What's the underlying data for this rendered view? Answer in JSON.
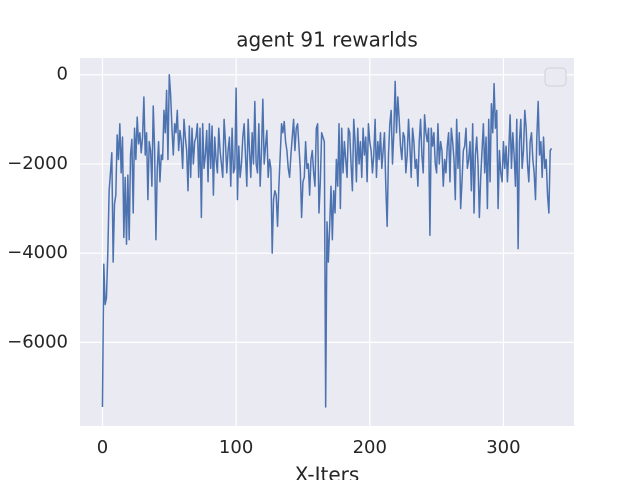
{
  "chart_data": {
    "type": "line",
    "title": "agent 91 rewarlds",
    "x_label": "X-Iters",
    "x": [
      0,
      1,
      2,
      3,
      4,
      5,
      6,
      7,
      8,
      9,
      10,
      11,
      12,
      13,
      14,
      15,
      16,
      17,
      18,
      19,
      20,
      21,
      22,
      23,
      24,
      25,
      26,
      27,
      28,
      29,
      30,
      31,
      32,
      33,
      34,
      35,
      36,
      37,
      38,
      39,
      40,
      41,
      42,
      43,
      44,
      45,
      46,
      47,
      48,
      49,
      50,
      51,
      52,
      53,
      54,
      55,
      56,
      57,
      58,
      59,
      60,
      61,
      62,
      63,
      64,
      65,
      66,
      67,
      68,
      69,
      70,
      71,
      72,
      73,
      74,
      75,
      76,
      77,
      78,
      79,
      80,
      81,
      82,
      83,
      84,
      85,
      86,
      87,
      88,
      89,
      90,
      91,
      92,
      93,
      94,
      95,
      96,
      97,
      98,
      99,
      100,
      101,
      102,
      103,
      104,
      105,
      106,
      107,
      108,
      109,
      110,
      111,
      112,
      113,
      114,
      115,
      116,
      117,
      118,
      119,
      120,
      121,
      122,
      123,
      124,
      125,
      126,
      127,
      128,
      129,
      130,
      131,
      132,
      133,
      134,
      135,
      136,
      137,
      138,
      139,
      140,
      141,
      142,
      143,
      144,
      145,
      146,
      147,
      148,
      149,
      150,
      151,
      152,
      153,
      154,
      155,
      156,
      157,
      158,
      159,
      160,
      161,
      162,
      163,
      164,
      165,
      166,
      167,
      168,
      169,
      170,
      171,
      172,
      173,
      174,
      175,
      176,
      177,
      178,
      179,
      180,
      181,
      182,
      183,
      184,
      185,
      186,
      187,
      188,
      189,
      190,
      191,
      192,
      193,
      194,
      195,
      196,
      197,
      198,
      199,
      200,
      201,
      202,
      203,
      204,
      205,
      206,
      207,
      208,
      209,
      210,
      211,
      212,
      213,
      214,
      215,
      216,
      217,
      218,
      219,
      220,
      221,
      222,
      223,
      224,
      225,
      226,
      227,
      228,
      229,
      230,
      231,
      232,
      233,
      234,
      235,
      236,
      237,
      238,
      239,
      240,
      241,
      242,
      243,
      244,
      245,
      246,
      247,
      248,
      249,
      250,
      251,
      252,
      253,
      254,
      255,
      256,
      257,
      258,
      259,
      260,
      261,
      262,
      263,
      264,
      265,
      266,
      267,
      268,
      269,
      270,
      271,
      272,
      273,
      274,
      275,
      276,
      277,
      278,
      279,
      280,
      281,
      282,
      283,
      284,
      285,
      286,
      287,
      288,
      289,
      290,
      291,
      292,
      293,
      294,
      295,
      296,
      297,
      298,
      299,
      300,
      301,
      302,
      303,
      304,
      305,
      306,
      307,
      308,
      309,
      310,
      311,
      312,
      313,
      314,
      315,
      316,
      317,
      318,
      319,
      320,
      321,
      322,
      323,
      324,
      325,
      326,
      327,
      328,
      329,
      330,
      331,
      332,
      333,
      334,
      335,
      336
    ],
    "values": [
      -7450,
      -4250,
      -5150,
      -5000,
      -4000,
      -2600,
      -2200,
      -1750,
      -4200,
      -2900,
      -2700,
      -1350,
      -1900,
      -1100,
      -2200,
      -1400,
      -3650,
      -2300,
      -3800,
      -2250,
      -3700,
      -1800,
      -1450,
      -3100,
      -1200,
      -1900,
      -950,
      -1550,
      -1300,
      -1750,
      -1400,
      -500,
      -1800,
      -1300,
      -2800,
      -1500,
      -1700,
      -2500,
      -700,
      -1650,
      -3700,
      -2100,
      -1500,
      -2400,
      -1800,
      -1900,
      -800,
      -1300,
      -350,
      -1900,
      0,
      -450,
      -1200,
      -1800,
      -1100,
      -1300,
      -800,
      -1700,
      -1250,
      -1500,
      -2100,
      -1000,
      -1400,
      -1700,
      -2600,
      -1150,
      -2300,
      -1200,
      -2000,
      -1500,
      -1400,
      -1100,
      -2300,
      -1200,
      -3200,
      -1100,
      -2100,
      -1800,
      -1250,
      -2400,
      -1100,
      -2100,
      -1150,
      -2700,
      -1400,
      -1900,
      -2200,
      -1200,
      -1700,
      -2000,
      -2300,
      -1000,
      -1500,
      -2200,
      -1700,
      -1400,
      -2500,
      -1200,
      -2200,
      -2100,
      -300,
      -2800,
      -1600,
      -2300,
      -2000,
      -1400,
      -1100,
      -1800,
      -2500,
      -1000,
      -1700,
      -2300,
      -1300,
      -2000,
      -600,
      -2000,
      -2200,
      -1100,
      -2500,
      -1700,
      -550,
      -2000,
      -1600,
      -1250,
      -2300,
      -1900,
      -2100,
      -4000,
      -2800,
      -2600,
      -2700,
      -3400,
      -2500,
      -1800,
      -1100,
      -1300,
      -1050,
      -1500,
      -1700,
      -2100,
      -2300,
      -1800,
      -1400,
      -1000,
      -1700,
      -1200,
      -1100,
      -1600,
      -2100,
      -3200,
      -2400,
      -2300,
      -1500,
      -2100,
      -2000,
      -2700,
      -1900,
      -1700,
      -2200,
      -2500,
      -1200,
      -1100,
      -3100,
      -2400,
      -1300,
      -1400,
      -1500,
      -7450,
      -3300,
      -4200,
      -3400,
      -2500,
      -3700,
      -2600,
      -3100,
      -1900,
      -2500,
      -1100,
      -3000,
      -1200,
      -2200,
      -1500,
      -1900,
      -2300,
      -1200,
      -1300,
      -2000,
      -2600,
      -1000,
      -1500,
      -2400,
      -1200,
      -2000,
      -1500,
      -2300,
      -1200,
      -1800,
      -1400,
      -2400,
      -1100,
      -1500,
      -1700,
      -2200,
      -1800,
      -1000,
      -2300,
      -1500,
      -1900,
      -1300,
      -2100,
      -1700,
      -1300,
      -2500,
      -3400,
      -1800,
      -1100,
      -800,
      -2000,
      -1300,
      -150,
      -1300,
      -500,
      -1000,
      -1600,
      -1900,
      -1300,
      -1400,
      -2200,
      -1800,
      -1000,
      -1600,
      -2300,
      -1200,
      -1500,
      -2100,
      -1900,
      -2500,
      -1500,
      -1000,
      -1800,
      -2200,
      -900,
      -1300,
      -1500,
      -1200,
      -3600,
      -1200,
      -1600,
      -1300,
      -2000,
      -2200,
      -1100,
      -2000,
      -1500,
      -1700,
      -2500,
      -1900,
      -2200,
      -1600,
      -1300,
      -2400,
      -1200,
      -1500,
      -1900,
      -2800,
      -1000,
      -2100,
      -1300,
      -3000,
      -2400,
      -1700,
      -1600,
      -1200,
      -2100,
      -1900,
      -1500,
      -2600,
      -1100,
      -3100,
      -1800,
      -1400,
      -2000,
      -3200,
      -2300,
      -1700,
      -1100,
      -2200,
      -1400,
      -3000,
      -1000,
      -2400,
      -650,
      -1300,
      -200,
      -1200,
      -800,
      -3000,
      -1700,
      -2200,
      -2400,
      -1500,
      -2100,
      -1600,
      -2400,
      -1700,
      -900,
      -2100,
      -1300,
      -1800,
      -2500,
      -1000,
      -3900,
      -1500,
      -1000,
      -2100,
      -1700,
      -800,
      -1200,
      -2000,
      -2400,
      -1500,
      -1300,
      -1900,
      -2200,
      -2800,
      -1400,
      -600,
      -1800,
      -1500,
      -2300,
      -1400,
      -2100,
      -1900,
      -2700,
      -3100,
      -1700,
      -1650
    ],
    "color": "#4c72b0",
    "xlim": [
      -16.8,
      352.8
    ],
    "ylim": [
      -7875,
      375
    ],
    "xticks": [
      0,
      100,
      200,
      300
    ],
    "yticks": [
      {
        "value": -6000,
        "label": "−6000"
      },
      {
        "value": -4000,
        "label": "−4000"
      },
      {
        "value": -2000,
        "label": "−2000"
      },
      0
    ],
    "grid": true,
    "legend": "upper right"
  }
}
